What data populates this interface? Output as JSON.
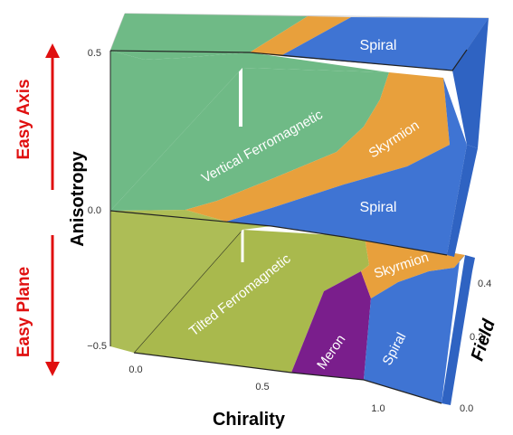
{
  "axes": {
    "x_label": "Chirality",
    "y_label": "Field",
    "z_label": "Anisotropy",
    "x_ticks": [
      "0.0",
      "0.5",
      "1.0"
    ],
    "y_ticks": [
      "0.0",
      "0.2",
      "0.4"
    ],
    "z_ticks": [
      "0.5",
      "0.0",
      "−0.5"
    ]
  },
  "side_labels": {
    "easy_axis": "Easy Axis",
    "easy_plane": "Easy Plane"
  },
  "regions": {
    "top_spiral": "Spiral",
    "vertical_ferromagnetic": "Vertical Ferromagnetic",
    "top_skyrmion": "Skyrmion",
    "middle_spiral": "Spiral",
    "middle_skyrmion": "Skyrmion",
    "tilted_ferromagnetic": "Tilted Ferromagnetic",
    "meron": "Meron",
    "bottom_spiral": "Spiral"
  },
  "colors": {
    "ferromagnetic_vertical": "#6fba86",
    "ferromagnetic_tilted": "#a9b94d",
    "skyrmion": "#e8a03c",
    "spiral": "#3f74d3",
    "meron": "#7a1e8c",
    "arrow": "#e01010"
  }
}
